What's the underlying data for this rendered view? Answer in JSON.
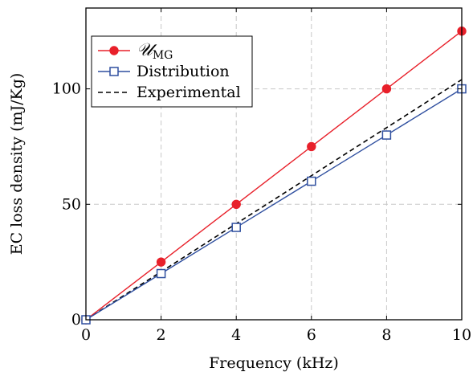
{
  "chart_data": {
    "type": "line",
    "xlabel": "Frequency (kHz)",
    "ylabel": "EC loss density (mJ/Kg)",
    "xlim": [
      0,
      10
    ],
    "ylim": [
      0,
      135
    ],
    "xticks": [
      0,
      2,
      4,
      6,
      8,
      10
    ],
    "yticks": [
      0,
      50,
      100
    ],
    "grid": true,
    "legend_position": "top-left",
    "series": [
      {
        "name": "𝒰",
        "name_subscript": "MG",
        "color": "#e8202a",
        "marker": "circle-filled",
        "line_style": "solid",
        "x": [
          0,
          2,
          4,
          6,
          8,
          10
        ],
        "y": [
          0,
          25,
          50,
          75,
          100,
          125
        ]
      },
      {
        "name": "Distribution",
        "color": "#2f4f9f",
        "marker": "square-open",
        "line_style": "solid",
        "x": [
          0,
          2,
          4,
          6,
          8,
          10
        ],
        "y": [
          0,
          20,
          40,
          60,
          80,
          100
        ]
      },
      {
        "name": "Experimental",
        "color": "#000000",
        "marker": "none",
        "line_style": "dashed",
        "x": [
          0,
          10
        ],
        "y": [
          0,
          104
        ]
      }
    ]
  }
}
